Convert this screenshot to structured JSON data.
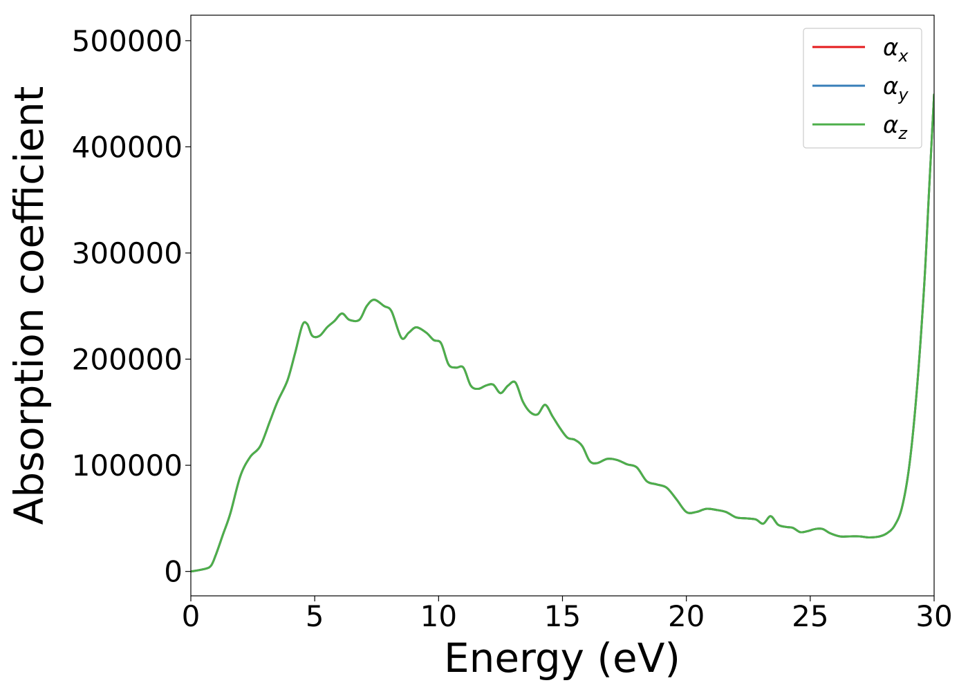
{
  "chart_data": {
    "type": "line",
    "xlabel": "Energy (eV)",
    "ylabel": "Absorption coefficient",
    "xlim": [
      0,
      30
    ],
    "ylim": [
      -23000,
      524000
    ],
    "xticks": [
      0,
      5,
      10,
      15,
      20,
      25,
      30
    ],
    "yticks": [
      0,
      100000,
      200000,
      300000,
      400000,
      500000
    ],
    "grid": false,
    "legend_position": "top-right",
    "series": [
      {
        "name": "αx",
        "label_base": "α",
        "label_sub": "x",
        "color": "#e41a1c",
        "x": [
          0,
          0.5,
          0.8,
          1.0,
          1.3,
          1.6,
          2.0,
          2.4,
          2.8,
          3.2,
          3.5,
          3.9,
          4.2,
          4.5,
          4.7,
          4.9,
          5.2,
          5.5,
          5.8,
          6.1,
          6.4,
          6.8,
          7.1,
          7.4,
          7.8,
          8.1,
          8.5,
          8.8,
          9.1,
          9.5,
          9.8,
          10.1,
          10.4,
          10.7,
          11.0,
          11.3,
          11.6,
          11.9,
          12.2,
          12.5,
          12.8,
          13.1,
          13.4,
          13.7,
          14.0,
          14.3,
          14.6,
          14.9,
          15.2,
          15.5,
          15.8,
          16.1,
          16.4,
          16.8,
          17.2,
          17.6,
          18.0,
          18.4,
          18.8,
          19.2,
          19.6,
          20.0,
          20.4,
          20.8,
          21.2,
          21.6,
          22.0,
          22.4,
          22.8,
          23.1,
          23.4,
          23.7,
          24.0,
          24.3,
          24.6,
          24.9,
          25.2,
          25.5,
          25.8,
          26.2,
          26.6,
          27.0,
          27.4,
          27.8,
          28.1,
          28.4,
          28.7,
          29.0,
          29.3,
          29.6,
          29.8,
          30.0
        ],
        "y": [
          0,
          2000,
          5000,
          15000,
          35000,
          55000,
          90000,
          108000,
          118000,
          142000,
          160000,
          180000,
          205000,
          232000,
          233000,
          222000,
          222000,
          230000,
          236000,
          243000,
          237000,
          237000,
          250000,
          256000,
          250000,
          245000,
          220000,
          225000,
          230000,
          225000,
          218000,
          215000,
          195000,
          192000,
          192000,
          175000,
          172000,
          175000,
          176000,
          168000,
          175000,
          178000,
          160000,
          150000,
          148000,
          157000,
          146000,
          135000,
          126000,
          124000,
          118000,
          104000,
          102000,
          106000,
          105000,
          101000,
          98000,
          85000,
          82000,
          79000,
          68000,
          56000,
          56000,
          59000,
          58000,
          56000,
          51000,
          50000,
          49000,
          45000,
          52000,
          44000,
          42000,
          41000,
          37000,
          38000,
          40000,
          40000,
          36000,
          33000,
          33000,
          33000,
          32000,
          33000,
          36000,
          43000,
          60000,
          100000,
          170000,
          270000,
          360000,
          450000
        ]
      },
      {
        "name": "αy",
        "label_base": "α",
        "label_sub": "y",
        "color": "#377eb8",
        "x": [
          0,
          0.5,
          0.8,
          1.0,
          1.3,
          1.6,
          2.0,
          2.4,
          2.8,
          3.2,
          3.5,
          3.9,
          4.2,
          4.5,
          4.7,
          4.9,
          5.2,
          5.5,
          5.8,
          6.1,
          6.4,
          6.8,
          7.1,
          7.4,
          7.8,
          8.1,
          8.5,
          8.8,
          9.1,
          9.5,
          9.8,
          10.1,
          10.4,
          10.7,
          11.0,
          11.3,
          11.6,
          11.9,
          12.2,
          12.5,
          12.8,
          13.1,
          13.4,
          13.7,
          14.0,
          14.3,
          14.6,
          14.9,
          15.2,
          15.5,
          15.8,
          16.1,
          16.4,
          16.8,
          17.2,
          17.6,
          18.0,
          18.4,
          18.8,
          19.2,
          19.6,
          20.0,
          20.4,
          20.8,
          21.2,
          21.6,
          22.0,
          22.4,
          22.8,
          23.1,
          23.4,
          23.7,
          24.0,
          24.3,
          24.6,
          24.9,
          25.2,
          25.5,
          25.8,
          26.2,
          26.6,
          27.0,
          27.4,
          27.8,
          28.1,
          28.4,
          28.7,
          29.0,
          29.3,
          29.6,
          29.8,
          30.0
        ],
        "y": [
          0,
          2000,
          5000,
          15000,
          35000,
          55000,
          90000,
          108000,
          118000,
          142000,
          160000,
          180000,
          205000,
          232000,
          233000,
          222000,
          222000,
          230000,
          236000,
          243000,
          237000,
          237000,
          250000,
          256000,
          250000,
          245000,
          220000,
          225000,
          230000,
          225000,
          218000,
          215000,
          195000,
          192000,
          192000,
          175000,
          172000,
          175000,
          176000,
          168000,
          175000,
          178000,
          160000,
          150000,
          148000,
          157000,
          146000,
          135000,
          126000,
          124000,
          118000,
          104000,
          102000,
          106000,
          105000,
          101000,
          98000,
          85000,
          82000,
          79000,
          68000,
          56000,
          56000,
          59000,
          58000,
          56000,
          51000,
          50000,
          49000,
          45000,
          52000,
          44000,
          42000,
          41000,
          37000,
          38000,
          40000,
          40000,
          36000,
          33000,
          33000,
          33000,
          32000,
          33000,
          36000,
          43000,
          60000,
          100000,
          170000,
          270000,
          360000,
          450000
        ]
      },
      {
        "name": "αz",
        "label_base": "α",
        "label_sub": "z",
        "color": "#4daf4a",
        "x": [
          0,
          0.5,
          0.8,
          1.0,
          1.3,
          1.6,
          2.0,
          2.4,
          2.8,
          3.2,
          3.5,
          3.9,
          4.2,
          4.5,
          4.7,
          4.9,
          5.2,
          5.5,
          5.8,
          6.1,
          6.4,
          6.8,
          7.1,
          7.4,
          7.8,
          8.1,
          8.5,
          8.8,
          9.1,
          9.5,
          9.8,
          10.1,
          10.4,
          10.7,
          11.0,
          11.3,
          11.6,
          11.9,
          12.2,
          12.5,
          12.8,
          13.1,
          13.4,
          13.7,
          14.0,
          14.3,
          14.6,
          14.9,
          15.2,
          15.5,
          15.8,
          16.1,
          16.4,
          16.8,
          17.2,
          17.6,
          18.0,
          18.4,
          18.8,
          19.2,
          19.6,
          20.0,
          20.4,
          20.8,
          21.2,
          21.6,
          22.0,
          22.4,
          22.8,
          23.1,
          23.4,
          23.7,
          24.0,
          24.3,
          24.6,
          24.9,
          25.2,
          25.5,
          25.8,
          26.2,
          26.6,
          27.0,
          27.4,
          27.8,
          28.1,
          28.4,
          28.7,
          29.0,
          29.3,
          29.6,
          29.8,
          30.0
        ],
        "y": [
          0,
          2000,
          5000,
          15000,
          35000,
          55000,
          90000,
          108000,
          118000,
          142000,
          160000,
          180000,
          205000,
          232000,
          233000,
          222000,
          222000,
          230000,
          236000,
          243000,
          237000,
          237000,
          250000,
          256000,
          250000,
          245000,
          220000,
          225000,
          230000,
          225000,
          218000,
          215000,
          195000,
          192000,
          192000,
          175000,
          172000,
          175000,
          176000,
          168000,
          175000,
          178000,
          160000,
          150000,
          148000,
          157000,
          146000,
          135000,
          126000,
          124000,
          118000,
          104000,
          102000,
          106000,
          105000,
          101000,
          98000,
          85000,
          82000,
          79000,
          68000,
          56000,
          56000,
          59000,
          58000,
          56000,
          51000,
          50000,
          49000,
          45000,
          52000,
          44000,
          42000,
          41000,
          37000,
          38000,
          40000,
          40000,
          36000,
          33000,
          33000,
          33000,
          32000,
          33000,
          36000,
          43000,
          60000,
          100000,
          170000,
          270000,
          360000,
          450000
        ]
      }
    ]
  }
}
